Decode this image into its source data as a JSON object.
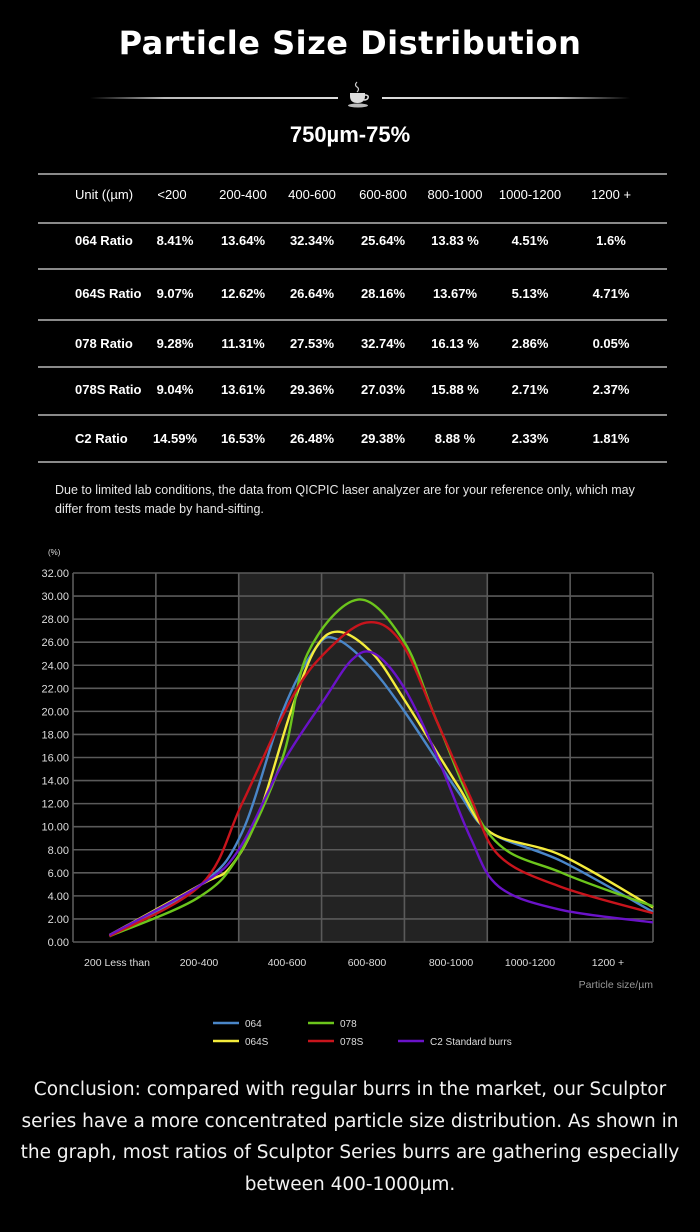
{
  "header": {
    "title": "Particle Size Distribution",
    "divider_icon": "coffee-cup-icon",
    "subtitle": "750µm-75%"
  },
  "table": {
    "columns": [
      "Unit ((µm)",
      "<200",
      "200-400",
      "400-600",
      "600-800",
      "800-1000",
      "1000-1200",
      "1200 +"
    ],
    "rows": [
      {
        "label": "064 Ratio",
        "values": [
          "8.41%",
          "13.64%",
          "32.34%",
          "25.64%",
          "13.83 %",
          "4.51%",
          "1.6%"
        ]
      },
      {
        "label": "064S Ratio",
        "values": [
          "9.07%",
          "12.62%",
          "26.64%",
          "28.16%",
          "13.67%",
          "5.13%",
          "4.71%"
        ]
      },
      {
        "label": "078 Ratio",
        "values": [
          "9.28%",
          "11.31%",
          "27.53%",
          "32.74%",
          "16.13 %",
          "2.86%",
          "0.05%"
        ]
      },
      {
        "label": "078S Ratio",
        "values": [
          "9.04%",
          "13.61%",
          "29.36%",
          "27.03%",
          "15.88 %",
          "2.71%",
          "2.37%"
        ]
      },
      {
        "label": "C2 Ratio",
        "values": [
          "14.59%",
          "16.53%",
          "26.48%",
          "29.38%",
          "8.88 %",
          "2.33%",
          "1.81%"
        ]
      }
    ]
  },
  "note": "Due to limited lab conditions, the data from QICPIC laser analyzer are for your reference only, which may differ from tests made by hand-sifting.",
  "chart_data": {
    "type": "line",
    "title": "",
    "ylabel": "(%)",
    "xlabel": "Particle size/µm",
    "ylim": [
      0,
      32
    ],
    "yticks": [
      "0.00",
      "2.00",
      "4.00",
      "6.00",
      "8.00",
      "10.00",
      "12.00",
      "14.00",
      "16.00",
      "18.00",
      "20.00",
      "22.00",
      "24.00",
      "26.00",
      "28.00",
      "30.00",
      "32.00"
    ],
    "categories": [
      "200 Less than",
      "200-400",
      "400-600",
      "600-800",
      "800-1000",
      "1000-1200",
      "1200 +"
    ],
    "grid": true,
    "highlighted_columns": [
      2,
      3,
      4
    ],
    "legend_position": "bottom",
    "series": [
      {
        "name": "064",
        "color": "#4a86c8",
        "points": [
          [
            0.44,
            0.5
          ],
          [
            1.55,
            5
          ],
          [
            2.04,
            9.5
          ],
          [
            2.53,
            20
          ],
          [
            2.93,
            25.5
          ],
          [
            3.17,
            26.3
          ],
          [
            3.57,
            24
          ],
          [
            4.0,
            20
          ],
          [
            4.65,
            13
          ],
          [
            5.04,
            9.5
          ],
          [
            5.9,
            7
          ],
          [
            7.0,
            2.6
          ]
        ]
      },
      {
        "name": "064S",
        "color": "#f4ec3c",
        "points": [
          [
            0.44,
            0.6
          ],
          [
            1.55,
            5
          ],
          [
            1.9,
            6.5
          ],
          [
            2.24,
            11
          ],
          [
            2.63,
            20
          ],
          [
            2.93,
            25.5
          ],
          [
            3.22,
            26.9
          ],
          [
            3.62,
            25
          ],
          [
            4.0,
            21
          ],
          [
            4.65,
            13.5
          ],
          [
            5.04,
            9.5
          ],
          [
            5.9,
            7.5
          ],
          [
            7.0,
            3.0
          ]
        ]
      },
      {
        "name": "078",
        "color": "#6cc51c",
        "points": [
          [
            0.44,
            0.5
          ],
          [
            1.5,
            3.8
          ],
          [
            2.0,
            7.5
          ],
          [
            2.53,
            16
          ],
          [
            2.83,
            25
          ],
          [
            3.44,
            29.7
          ],
          [
            4.0,
            26
          ],
          [
            4.4,
            19
          ],
          [
            5.04,
            9.2
          ],
          [
            5.9,
            6
          ],
          [
            7.0,
            3.1
          ]
        ]
      },
      {
        "name": "078S",
        "color": "#c8141c",
        "points": [
          [
            0.44,
            0.5
          ],
          [
            1.55,
            5
          ],
          [
            2.04,
            12
          ],
          [
            2.63,
            21
          ],
          [
            3.03,
            25
          ],
          [
            3.54,
            27.7
          ],
          [
            3.96,
            26
          ],
          [
            4.4,
            19
          ],
          [
            4.8,
            12.5
          ],
          [
            5.14,
            7.5
          ],
          [
            5.88,
            4.8
          ],
          [
            7.0,
            2.5
          ]
        ]
      },
      {
        "name": "C2 Standard burrs",
        "color": "#6a12c8",
        "points": [
          [
            0.44,
            0.6
          ],
          [
            1.55,
            5
          ],
          [
            2.0,
            8
          ],
          [
            2.53,
            15.5
          ],
          [
            3.03,
            21
          ],
          [
            3.37,
            24.5
          ],
          [
            3.64,
            25
          ],
          [
            4.0,
            22
          ],
          [
            4.4,
            16
          ],
          [
            4.8,
            9
          ],
          [
            5.14,
            4.8
          ],
          [
            5.88,
            2.8
          ],
          [
            7.0,
            1.7
          ]
        ]
      }
    ]
  },
  "conclusion": "Conclusion: compared with regular burrs in the market, our Sculptor series have a more concentrated particle size distribution. As shown in the graph, most ratios of Sculptor Series burrs are gathering especially between 400-1000µm."
}
